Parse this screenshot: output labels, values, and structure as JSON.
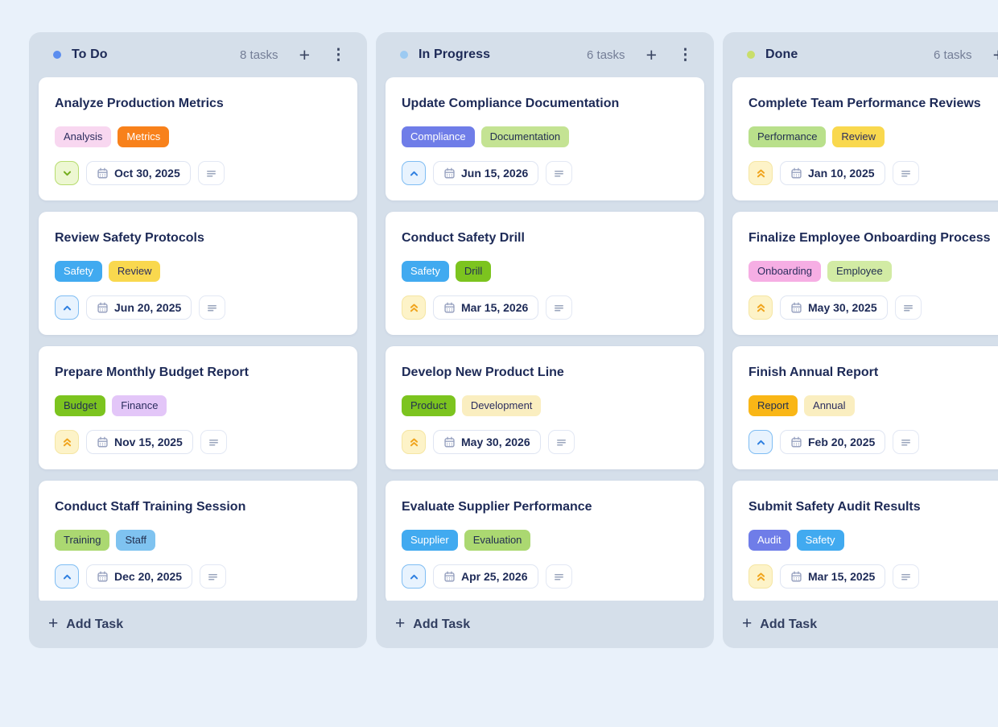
{
  "theme": {
    "page_bg": "#e9f1fa",
    "column_bg": "#d5dfea",
    "card_bg": "#ffffff",
    "heading_color": "#1d2a57",
    "muted_color": "#747e97",
    "icon_color": "#3a4562",
    "chip_border": "#dfe5f2"
  },
  "icons": {
    "add": "+",
    "column_menu": "⋮",
    "add_task_plus": "+"
  },
  "priorities": {
    "low": {
      "icon": "chevron-down",
      "bg": "#edf7d2",
      "border": "#b7dc6f",
      "color": "#74ad1d"
    },
    "medium": {
      "icon": "chevron-up",
      "bg": "#e8f3fe",
      "border": "#7fbdf3",
      "color": "#2e7fe0"
    },
    "high": {
      "icon": "double-chevron-up",
      "bg": "#fdf3c8",
      "border": "#f5e6a4",
      "color": "#f0a41d"
    }
  },
  "board": {
    "columns": [
      {
        "id": "todo",
        "name": "To Do",
        "dot_color": "#5b8def",
        "task_count": "8 tasks",
        "add_task_label": "Add Task",
        "cards": [
          {
            "title": "Analyze Production Metrics",
            "tags": [
              {
                "label": "Analysis",
                "bg": "#f8d7f0",
                "color": "#2b2d5e"
              },
              {
                "label": "Metrics",
                "bg": "#f8811b",
                "color": "#ffffff"
              }
            ],
            "priority": "low",
            "due_date": "Oct 30, 2025",
            "has_description": true
          },
          {
            "title": "Review Safety Protocols",
            "tags": [
              {
                "label": "Safety",
                "bg": "#41aaf0",
                "color": "#ffffff"
              },
              {
                "label": "Review",
                "bg": "#f9d84e",
                "color": "#2b2d5e"
              }
            ],
            "priority": "medium",
            "due_date": "Jun 20, 2025",
            "has_description": true
          },
          {
            "title": "Prepare Monthly Budget Report",
            "tags": [
              {
                "label": "Budget",
                "bg": "#7cc41f",
                "color": "#233050"
              },
              {
                "label": "Finance",
                "bg": "#e3c6f8",
                "color": "#2b2d5e"
              }
            ],
            "priority": "high",
            "due_date": "Nov 15, 2025",
            "has_description": true
          },
          {
            "title": "Conduct Staff Training Session",
            "tags": [
              {
                "label": "Training",
                "bg": "#abd871",
                "color": "#233050"
              },
              {
                "label": "Staff",
                "bg": "#7fc3f0",
                "color": "#233050"
              }
            ],
            "priority": "medium",
            "due_date": "Dec 20, 2025",
            "has_description": true
          }
        ]
      },
      {
        "id": "in-progress",
        "name": "In Progress",
        "dot_color": "#9ccaf2",
        "task_count": "6 tasks",
        "add_task_label": "Add Task",
        "cards": [
          {
            "title": "Update Compliance Documentation",
            "tags": [
              {
                "label": "Compliance",
                "bg": "#6f7de8",
                "color": "#ffffff"
              },
              {
                "label": "Documentation",
                "bg": "#c4e393",
                "color": "#233050"
              }
            ],
            "priority": "medium",
            "due_date": "Jun 15, 2026",
            "has_description": true
          },
          {
            "title": "Conduct Safety Drill",
            "tags": [
              {
                "label": "Safety",
                "bg": "#41aaf0",
                "color": "#ffffff"
              },
              {
                "label": "Drill",
                "bg": "#7cc41f",
                "color": "#233050"
              }
            ],
            "priority": "high",
            "due_date": "Mar 15, 2026",
            "has_description": true
          },
          {
            "title": "Develop New Product Line",
            "tags": [
              {
                "label": "Product",
                "bg": "#7cc41f",
                "color": "#233050"
              },
              {
                "label": "Development",
                "bg": "#faeec0",
                "color": "#2b2d5e"
              }
            ],
            "priority": "high",
            "due_date": "May 30, 2026",
            "has_description": true
          },
          {
            "title": "Evaluate Supplier Performance",
            "tags": [
              {
                "label": "Supplier",
                "bg": "#41aaf0",
                "color": "#ffffff"
              },
              {
                "label": "Evaluation",
                "bg": "#abd871",
                "color": "#233050"
              }
            ],
            "priority": "medium",
            "due_date": "Apr 25, 2026",
            "has_description": true
          }
        ]
      },
      {
        "id": "done",
        "name": "Done",
        "dot_color": "#c9de6b",
        "task_count": "6 tasks",
        "add_task_label": "Add Task",
        "cards": [
          {
            "title": "Complete Team Performance Reviews",
            "tags": [
              {
                "label": "Performance",
                "bg": "#b9e08b",
                "color": "#233050"
              },
              {
                "label": "Review",
                "bg": "#f9d84e",
                "color": "#2b2d5e"
              }
            ],
            "priority": "high",
            "due_date": "Jan 10, 2025",
            "has_description": true
          },
          {
            "title": "Finalize Employee Onboarding Process",
            "tags": [
              {
                "label": "Onboarding",
                "bg": "#f6aee4",
                "color": "#2b2d5e"
              },
              {
                "label": "Employee",
                "bg": "#d2eba4",
                "color": "#233050"
              }
            ],
            "priority": "high",
            "due_date": "May 30, 2025",
            "has_description": true
          },
          {
            "title": "Finish Annual Report",
            "tags": [
              {
                "label": "Report",
                "bg": "#f9b616",
                "color": "#233050"
              },
              {
                "label": "Annual",
                "bg": "#faeec0",
                "color": "#2b2d5e"
              }
            ],
            "priority": "medium",
            "due_date": "Feb 20, 2025",
            "has_description": true
          },
          {
            "title": "Submit Safety Audit Results",
            "tags": [
              {
                "label": "Audit",
                "bg": "#6f7de8",
                "color": "#ffffff"
              },
              {
                "label": "Safety",
                "bg": "#41aaf0",
                "color": "#ffffff"
              }
            ],
            "priority": "high",
            "due_date": "Mar 15, 2025",
            "has_description": true
          }
        ]
      }
    ]
  }
}
